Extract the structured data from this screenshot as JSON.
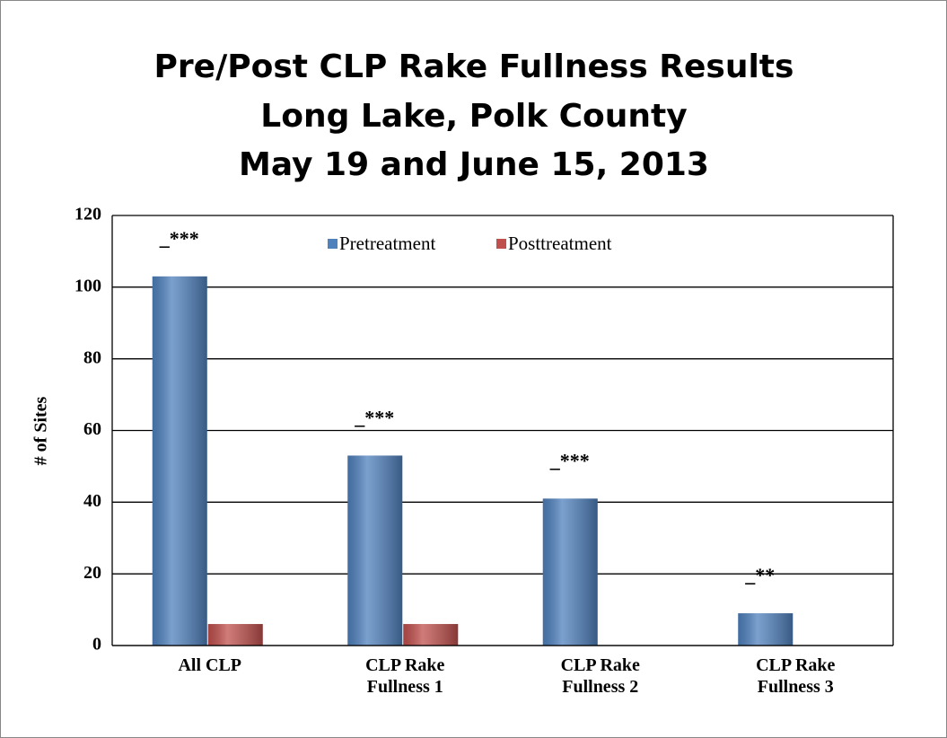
{
  "chart_data": {
    "type": "bar",
    "title": [
      "Pre/Post CLP Rake Fullness Results",
      "Long Lake, Polk County",
      "May 19 and June 15, 2013"
    ],
    "y_label": "# of Sites",
    "categories": [
      "All CLP",
      "CLP Rake Fullness 1",
      "CLP Rake Fullness 2",
      "CLP Rake Fullness 3"
    ],
    "series": [
      {
        "name": "Pretreatment",
        "color": "#4f81bd",
        "values": [
          103,
          53,
          41,
          9
        ]
      },
      {
        "name": "Posttreatment",
        "color": "#c0504d",
        "values": [
          6,
          6,
          0,
          0
        ]
      }
    ],
    "annotations": [
      "_***",
      "_***",
      "_***",
      "_**"
    ],
    "ylim": [
      0,
      120
    ],
    "yticks": [
      0,
      20,
      40,
      60,
      80,
      100,
      120
    ],
    "grid": true,
    "legend": "top"
  }
}
